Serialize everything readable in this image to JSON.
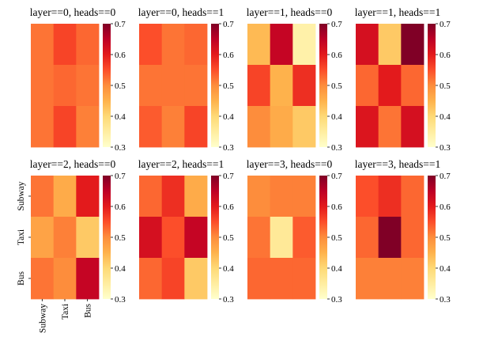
{
  "chart_data": {
    "type": "heatmap",
    "colormap": "YlOrRd",
    "vmin": 0.3,
    "vmax": 0.7,
    "colorbar_ticks": [
      "0.3",
      "0.4",
      "0.5",
      "0.6",
      "0.7"
    ],
    "row_labels": [
      "Subway",
      "Taxi",
      "Bus"
    ],
    "col_labels": [
      "Subway",
      "Taxi",
      "Bus"
    ],
    "panels": [
      {
        "title": "layer==0, heads==0",
        "values": [
          [
            0.52,
            0.56,
            0.53
          ],
          [
            0.52,
            0.53,
            0.52
          ],
          [
            0.52,
            0.56,
            0.51
          ]
        ]
      },
      {
        "title": "layer==0, heads==1",
        "values": [
          [
            0.55,
            0.52,
            0.53
          ],
          [
            0.52,
            0.52,
            0.52
          ],
          [
            0.54,
            0.51,
            0.56
          ]
        ]
      },
      {
        "title": "layer==1, heads==0",
        "values": [
          [
            0.44,
            0.64,
            0.34
          ],
          [
            0.56,
            0.45,
            0.58
          ],
          [
            0.5,
            0.46,
            0.42
          ]
        ]
      },
      {
        "title": "layer==1, heads==1",
        "values": [
          [
            0.62,
            0.42,
            0.7
          ],
          [
            0.53,
            0.6,
            0.53
          ],
          [
            0.61,
            0.52,
            0.62
          ]
        ]
      },
      {
        "title": "layer==2, heads==0",
        "values": [
          [
            0.52,
            0.46,
            0.6
          ],
          [
            0.47,
            0.51,
            0.42
          ],
          [
            0.52,
            0.5,
            0.64
          ]
        ]
      },
      {
        "title": "layer==2, heads==1",
        "values": [
          [
            0.53,
            0.58,
            0.46
          ],
          [
            0.62,
            0.55,
            0.64
          ],
          [
            0.53,
            0.56,
            0.42
          ]
        ]
      },
      {
        "title": "layer==3, heads==0",
        "values": [
          [
            0.5,
            0.51,
            0.51
          ],
          [
            0.52,
            0.36,
            0.54
          ],
          [
            0.53,
            0.53,
            0.53
          ]
        ]
      },
      {
        "title": "layer==3, heads==1",
        "values": [
          [
            0.55,
            0.58,
            0.53
          ],
          [
            0.53,
            0.7,
            0.53
          ],
          [
            0.51,
            0.51,
            0.51
          ]
        ]
      }
    ]
  }
}
